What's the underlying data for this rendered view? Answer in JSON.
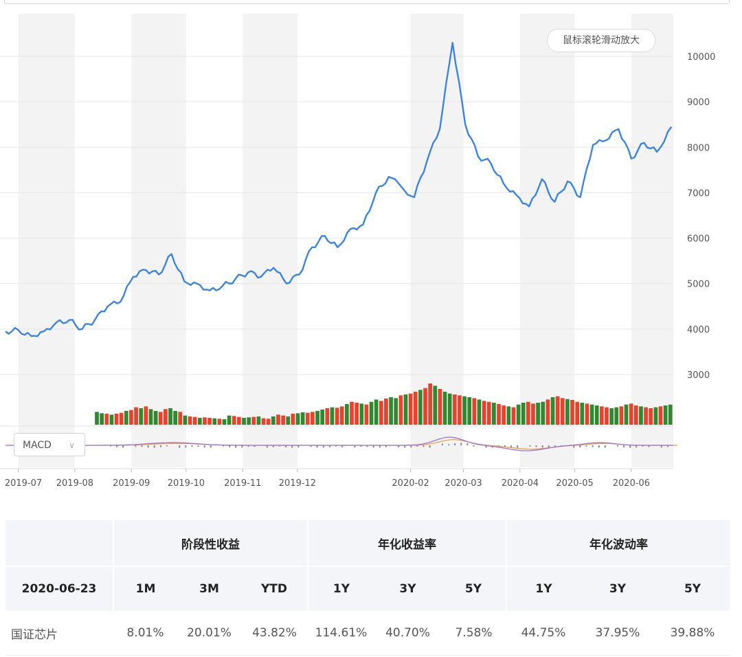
{
  "zoom_hint": "鼠标滚轮滑动放大",
  "indicator_select": {
    "value": "MACD"
  },
  "chart_data": {
    "type": "line",
    "y_axis": {
      "ticks": [
        3000,
        4000,
        5000,
        6000,
        7000,
        8000,
        9000,
        10000
      ],
      "position": "right"
    },
    "x_axis": {
      "ticks": [
        "2019-07",
        "2019-08",
        "2019-09",
        "2019-10",
        "2019-11",
        "2019-12",
        "2020-02",
        "2020-03",
        "2020-04",
        "2020-05",
        "2020-06"
      ]
    },
    "series": [
      {
        "color": "#3b84e3",
        "x": [
          "2019-06-24",
          "2019-07-01",
          "2019-07-08",
          "2019-07-15",
          "2019-07-22",
          "2019-07-29",
          "2019-08-05",
          "2019-08-12",
          "2019-08-19",
          "2019-08-26",
          "2019-09-02",
          "2019-09-09",
          "2019-09-16",
          "2019-09-23",
          "2019-09-30",
          "2019-10-07",
          "2019-10-14",
          "2019-10-21",
          "2019-10-28",
          "2019-11-04",
          "2019-11-11",
          "2019-11-18",
          "2019-11-25",
          "2019-12-02",
          "2019-12-09",
          "2019-12-16",
          "2019-12-23",
          "2019-12-30",
          "2020-01-06",
          "2020-01-13",
          "2020-01-20",
          "2020-02-03",
          "2020-02-10",
          "2020-02-17",
          "2020-02-24",
          "2020-03-02",
          "2020-03-09",
          "2020-03-16",
          "2020-03-23",
          "2020-03-30",
          "2020-04-06",
          "2020-04-13",
          "2020-04-20",
          "2020-04-27",
          "2020-05-04",
          "2020-05-11",
          "2020-05-18",
          "2020-05-25",
          "2020-06-01",
          "2020-06-08",
          "2020-06-15",
          "2020-06-23"
        ],
        "values": [
          3950,
          3980,
          3850,
          3950,
          4150,
          4200,
          4000,
          4200,
          4500,
          4600,
          5150,
          5300,
          5200,
          5650,
          5050,
          5000,
          4850,
          4950,
          5100,
          5250,
          5150,
          5350,
          5000,
          5200,
          5800,
          6050,
          5800,
          6200,
          6300,
          7000,
          7350,
          6900,
          7700,
          8400,
          10300,
          8500,
          7800,
          7650,
          7200,
          6950,
          6700,
          7300,
          6800,
          7250,
          6900,
          8050,
          8150,
          8400,
          7750,
          8100,
          7900,
          8450
        ]
      }
    ],
    "volume": {
      "x_start": "2019-08-12",
      "values": [
        28,
        25,
        24,
        22,
        24,
        26,
        30,
        32,
        38,
        36,
        40,
        34,
        30,
        28,
        34,
        36,
        30,
        28,
        20,
        18,
        17,
        15,
        16,
        15,
        14,
        13,
        12,
        20,
        19,
        17,
        15,
        16,
        17,
        18,
        14,
        13,
        18,
        22,
        20,
        18,
        24,
        25,
        27,
        26,
        28,
        30,
        33,
        36,
        38,
        37,
        40,
        45,
        50,
        48,
        46,
        44,
        50,
        55,
        52,
        57,
        60,
        58,
        64,
        66,
        68,
        72,
        76,
        80,
        90,
        85,
        78,
        72,
        68,
        66,
        64,
        62,
        60,
        58,
        55,
        52,
        50,
        48,
        45,
        42,
        40,
        38,
        44,
        48,
        50,
        46,
        48,
        50,
        55,
        60,
        62,
        58,
        56,
        54,
        50,
        48,
        46,
        44,
        42,
        40,
        38,
        36,
        38,
        40,
        44,
        46,
        42,
        40,
        38,
        36,
        38,
        40,
        42,
        44
      ],
      "colors": [
        "#e8412c",
        "#2f8a2f"
      ]
    },
    "macd": {
      "dif": {
        "color": "#9b6fe0"
      },
      "dea": {
        "color": "#f0a040"
      },
      "hist_color": "#888888"
    },
    "bands": [
      "2019-07",
      "2019-09",
      "2019-11",
      "2020-02",
      "2020-04",
      "2020-06"
    ]
  },
  "table": {
    "group_headers": [
      "阶段性收益",
      "年化收益率",
      "年化波动率"
    ],
    "date_label": "2020-06-23",
    "sub_headers": [
      "1M",
      "3M",
      "YTD",
      "1Y",
      "3Y",
      "5Y",
      "1Y",
      "3Y",
      "5Y"
    ],
    "rows": [
      {
        "name": "国证芯片",
        "values": [
          "8.01%",
          "20.01%",
          "43.82%",
          "114.61%",
          "40.70%",
          "7.58%",
          "44.75%",
          "37.95%",
          "39.88%"
        ]
      }
    ]
  }
}
